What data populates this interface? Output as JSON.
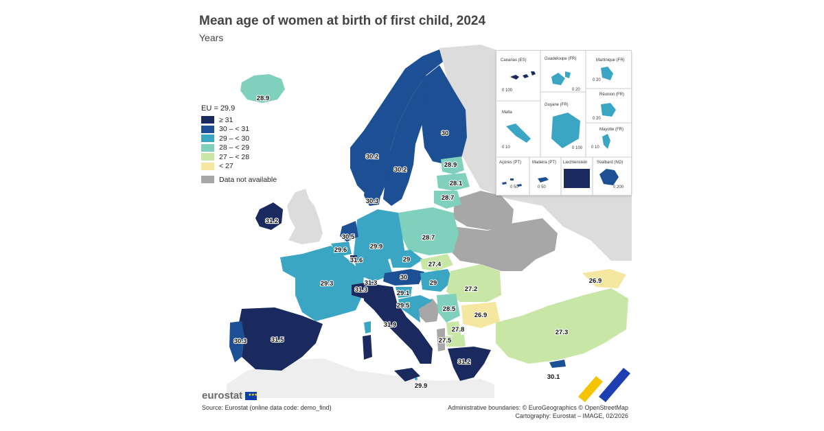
{
  "title": "Mean age of women at birth of first child, 2024",
  "subtitle": "Years",
  "legend": {
    "eu_label": "EU = 29.9",
    "classes": [
      {
        "label": "≥ 31",
        "color": "#1b2a5e"
      },
      {
        "label": "30 – < 31",
        "color": "#1d4f94"
      },
      {
        "label": "29 – < 30",
        "color": "#3aa6c4"
      },
      {
        "label": "28 – < 29",
        "color": "#7fd0bc"
      },
      {
        "label": "27 – < 28",
        "color": "#c8e6a6"
      },
      {
        "label": "< 27",
        "color": "#f6e7a0"
      }
    ],
    "not_available_label": "Data not available",
    "not_available_color": "#a7a7a7"
  },
  "values": {
    "iceland": "28.9",
    "norway": "30.2",
    "sweden": "30.2",
    "finland": "30",
    "estonia": "28.9",
    "latvia": "28.1",
    "lithuania": "28.7",
    "denmark": "30.3",
    "ireland": "31.2",
    "netherlands": "30.5",
    "belgium": "29.6",
    "luxembourg": "31.6",
    "germany": "29.9",
    "poland": "28.7",
    "czechia": "29",
    "slovakia": "27.4",
    "austria": "30",
    "hungary": "29",
    "switzerland": "31.3",
    "liechtenstein": "31.3",
    "france": "29.3",
    "slovenia": "29.1",
    "croatia": "29.5",
    "romania": "27.2",
    "bulgaria": "26.9",
    "serbia": "28.5",
    "montenegro": "27.8",
    "north_macedonia": "27.5",
    "italy": "31.9",
    "spain": "31.5",
    "portugal": "30.3",
    "greece": "31.2",
    "malta": "29.9",
    "cyprus": "30.1",
    "turkey": "27.3",
    "georgia": "26.9"
  },
  "insets": {
    "canarias": "Canarias (ES)",
    "guadeloupe": "Guadeloupe (FR)",
    "martinique": "Martinique (FR)",
    "reunion": "Réunion (FR)",
    "malta": "Malta",
    "guyane": "Guyane (FR)",
    "mayotte": "Mayotte (FR)",
    "acores": "Açores (PT)",
    "madeira": "Madeira (PT)",
    "liechtenstein": "Liechtenstein",
    "svalbard": "Svalbard (NO)",
    "scale_100": "0  100",
    "scale_20": "0  20",
    "scale_10": "0  10",
    "scale_50": "0  50",
    "scale_200": "0  200"
  },
  "brand": "eurostat",
  "source": "Source: Eurostat (online data code: demo_find)",
  "credits_line1": "Administrative boundaries: © EuroGeographics © OpenStreetMap",
  "credits_line2": "Cartography: Eurostat – IMAGE, 02/2026"
}
